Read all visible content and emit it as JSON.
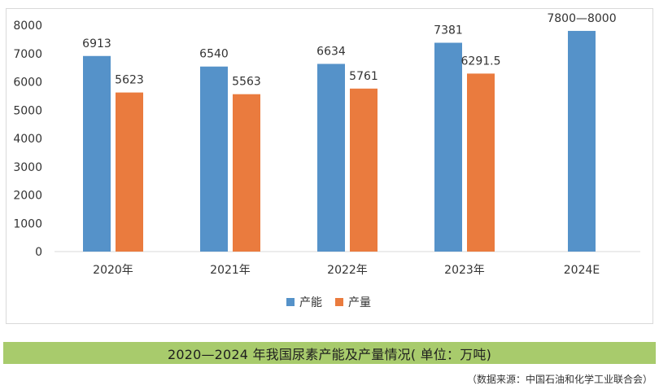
{
  "chart_data": {
    "type": "bar",
    "title": "",
    "xlabel": "",
    "ylabel": "",
    "categories": [
      "2020年",
      "2021年",
      "2022年",
      "2023年",
      "2024E"
    ],
    "series": [
      {
        "name": "产能",
        "color": "#5592c9",
        "values": [
          6913,
          6540,
          6634,
          7381,
          7800
        ],
        "labels": [
          "6913",
          "6540",
          "6634",
          "7381",
          "7800—8000"
        ]
      },
      {
        "name": "产量",
        "color": "#ea7b3e",
        "values": [
          5623,
          5563,
          5761,
          6291.5,
          null
        ],
        "labels": [
          "5623",
          "5563",
          "5761",
          "6291.5",
          ""
        ]
      }
    ],
    "ylim": [
      0,
      8000
    ],
    "yticks": [
      0,
      1000,
      2000,
      3000,
      4000,
      5000,
      6000,
      7000,
      8000
    ],
    "grid": false,
    "legend_position": "bottom-center"
  },
  "caption": "2020—2024 年我国尿素产能及产量情况( 单位：万吨)",
  "source": "（数据来源：中国石油和化学工业联合会）"
}
